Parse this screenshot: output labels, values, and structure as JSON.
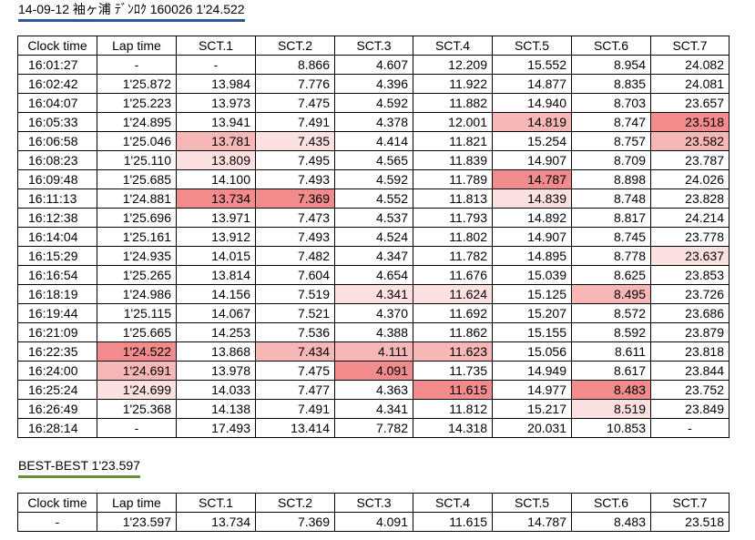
{
  "title": "14-09-12 袖ヶ浦 ﾃﾞﾝﾛｸ 160026 1'24.522",
  "best_title": "BEST-BEST 1'23.597",
  "colors": {
    "best": "#f28b8b",
    "second": "#f7b7b7",
    "third": "#fde0e0",
    "title_underline": "#2f5597",
    "best_underline": "#6a8f35"
  },
  "headers": [
    "Clock time",
    "Lap time",
    "SCT.1",
    "SCT.2",
    "SCT.3",
    "SCT.4",
    "SCT.5",
    "SCT.6",
    "SCT.7"
  ],
  "rows": [
    {
      "cells": [
        "16:01:27",
        "-",
        "-",
        "8.866",
        "4.607",
        "12.209",
        "15.552",
        "8.954",
        "24.082"
      ],
      "hl": [
        0,
        0,
        0,
        0,
        0,
        0,
        0,
        0,
        0
      ]
    },
    {
      "cells": [
        "16:02:42",
        "1'25.872",
        "13.984",
        "7.776",
        "4.396",
        "11.922",
        "14.877",
        "8.835",
        "24.081"
      ],
      "hl": [
        0,
        0,
        0,
        0,
        0,
        0,
        0,
        0,
        0
      ]
    },
    {
      "cells": [
        "16:04:07",
        "1'25.223",
        "13.973",
        "7.475",
        "4.592",
        "11.882",
        "14.940",
        "8.703",
        "23.657"
      ],
      "hl": [
        0,
        0,
        0,
        0,
        0,
        0,
        0,
        0,
        0
      ]
    },
    {
      "cells": [
        "16:05:33",
        "1'24.895",
        "13.941",
        "7.491",
        "4.378",
        "12.001",
        "14.819",
        "8.747",
        "23.518"
      ],
      "hl": [
        0,
        0,
        0,
        0,
        0,
        0,
        2,
        0,
        1
      ]
    },
    {
      "cells": [
        "16:06:58",
        "1'25.046",
        "13.781",
        "7.435",
        "4.414",
        "11.821",
        "15.254",
        "8.757",
        "23.582"
      ],
      "hl": [
        0,
        0,
        2,
        3,
        0,
        0,
        0,
        0,
        2
      ]
    },
    {
      "cells": [
        "16:08:23",
        "1'25.110",
        "13.809",
        "7.495",
        "4.565",
        "11.839",
        "14.907",
        "8.709",
        "23.787"
      ],
      "hl": [
        0,
        0,
        3,
        0,
        0,
        0,
        0,
        0,
        0
      ]
    },
    {
      "cells": [
        "16:09:48",
        "1'25.685",
        "14.100",
        "7.493",
        "4.592",
        "11.789",
        "14.787",
        "8.898",
        "24.026"
      ],
      "hl": [
        0,
        0,
        0,
        0,
        0,
        0,
        1,
        0,
        0
      ]
    },
    {
      "cells": [
        "16:11:13",
        "1'24.881",
        "13.734",
        "7.369",
        "4.552",
        "11.813",
        "14.839",
        "8.748",
        "23.828"
      ],
      "hl": [
        0,
        0,
        1,
        1,
        0,
        0,
        3,
        0,
        0
      ]
    },
    {
      "cells": [
        "16:12:38",
        "1'25.696",
        "13.971",
        "7.473",
        "4.537",
        "11.793",
        "14.892",
        "8.817",
        "24.214"
      ],
      "hl": [
        0,
        0,
        0,
        0,
        0,
        0,
        0,
        0,
        0
      ]
    },
    {
      "cells": [
        "16:14:04",
        "1'25.161",
        "13.912",
        "7.493",
        "4.524",
        "11.802",
        "14.907",
        "8.745",
        "23.778"
      ],
      "hl": [
        0,
        0,
        0,
        0,
        0,
        0,
        0,
        0,
        0
      ]
    },
    {
      "cells": [
        "16:15:29",
        "1'24.935",
        "14.015",
        "7.482",
        "4.347",
        "11.782",
        "14.895",
        "8.778",
        "23.637"
      ],
      "hl": [
        0,
        0,
        0,
        0,
        0,
        0,
        0,
        0,
        3
      ]
    },
    {
      "cells": [
        "16:16:54",
        "1'25.265",
        "13.814",
        "7.604",
        "4.654",
        "11.676",
        "15.039",
        "8.625",
        "23.853"
      ],
      "hl": [
        0,
        0,
        0,
        0,
        0,
        0,
        0,
        0,
        0
      ]
    },
    {
      "cells": [
        "16:18:19",
        "1'24.986",
        "14.156",
        "7.519",
        "4.341",
        "11.624",
        "15.125",
        "8.495",
        "23.726"
      ],
      "hl": [
        0,
        0,
        0,
        0,
        3,
        3,
        0,
        2,
        0
      ]
    },
    {
      "cells": [
        "16:19:44",
        "1'25.115",
        "14.067",
        "7.521",
        "4.370",
        "11.692",
        "15.207",
        "8.572",
        "23.686"
      ],
      "hl": [
        0,
        0,
        0,
        0,
        0,
        0,
        0,
        0,
        0
      ]
    },
    {
      "cells": [
        "16:21:09",
        "1'25.665",
        "14.253",
        "7.536",
        "4.388",
        "11.862",
        "15.155",
        "8.592",
        "23.879"
      ],
      "hl": [
        0,
        0,
        0,
        0,
        0,
        0,
        0,
        0,
        0
      ]
    },
    {
      "cells": [
        "16:22:35",
        "1'24.522",
        "13.868",
        "7.434",
        "4.111",
        "11.623",
        "15.056",
        "8.611",
        "23.818"
      ],
      "hl": [
        0,
        1,
        0,
        2,
        2,
        2,
        0,
        0,
        0
      ]
    },
    {
      "cells": [
        "16:24:00",
        "1'24.691",
        "13.978",
        "7.475",
        "4.091",
        "11.735",
        "14.949",
        "8.617",
        "23.844"
      ],
      "hl": [
        0,
        2,
        0,
        0,
        1,
        0,
        0,
        0,
        0
      ]
    },
    {
      "cells": [
        "16:25:24",
        "1'24.699",
        "14.033",
        "7.477",
        "4.363",
        "11.615",
        "14.977",
        "8.483",
        "23.752"
      ],
      "hl": [
        0,
        3,
        0,
        0,
        0,
        1,
        0,
        1,
        0
      ]
    },
    {
      "cells": [
        "16:26:49",
        "1'25.368",
        "14.138",
        "7.491",
        "4.341",
        "11.812",
        "15.217",
        "8.519",
        "23.849"
      ],
      "hl": [
        0,
        0,
        0,
        0,
        0,
        0,
        0,
        3,
        0
      ]
    },
    {
      "cells": [
        "16:28:14",
        "-",
        "17.493",
        "13.414",
        "7.782",
        "14.318",
        "20.031",
        "10.853",
        "-"
      ],
      "hl": [
        0,
        0,
        0,
        0,
        0,
        0,
        0,
        0,
        0
      ]
    }
  ],
  "best_row": [
    "-",
    "1'23.597",
    "13.734",
    "7.369",
    "4.091",
    "11.615",
    "14.787",
    "8.483",
    "23.518"
  ]
}
